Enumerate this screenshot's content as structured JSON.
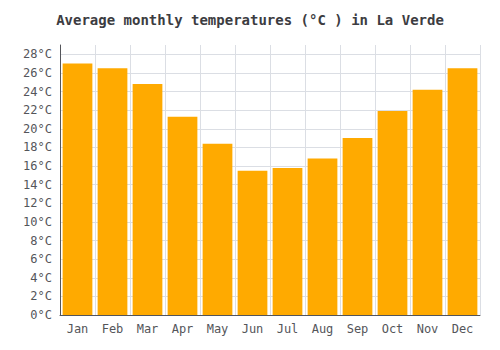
{
  "chart_data": {
    "type": "bar",
    "title": "Average monthly temperatures (°C ) in La Verde",
    "categories": [
      "Jan",
      "Feb",
      "Mar",
      "Apr",
      "May",
      "Jun",
      "Jul",
      "Aug",
      "Sep",
      "Oct",
      "Nov",
      "Dec"
    ],
    "values": [
      27.0,
      26.5,
      24.8,
      21.3,
      18.4,
      15.5,
      15.8,
      16.8,
      19.0,
      21.9,
      24.2,
      26.5
    ],
    "color": "#FFAA00",
    "ylim": [
      0,
      29
    ],
    "yticks": [
      {
        "value": 0,
        "label": "0°C"
      },
      {
        "value": 2,
        "label": "2°C"
      },
      {
        "value": 4,
        "label": "4°C"
      },
      {
        "value": 6,
        "label": "6°C"
      },
      {
        "value": 8,
        "label": "8°C"
      },
      {
        "value": 10,
        "label": "10°C"
      },
      {
        "value": 12,
        "label": "12°C"
      },
      {
        "value": 14,
        "label": "14°C"
      },
      {
        "value": 16,
        "label": "16°C"
      },
      {
        "value": 18,
        "label": "18°C"
      },
      {
        "value": 20,
        "label": "20°C"
      },
      {
        "value": 22,
        "label": "22°C"
      },
      {
        "value": 24,
        "label": "24°C"
      },
      {
        "value": 26,
        "label": "26°C"
      },
      {
        "value": 28,
        "label": "28°C"
      }
    ],
    "grid": true
  }
}
